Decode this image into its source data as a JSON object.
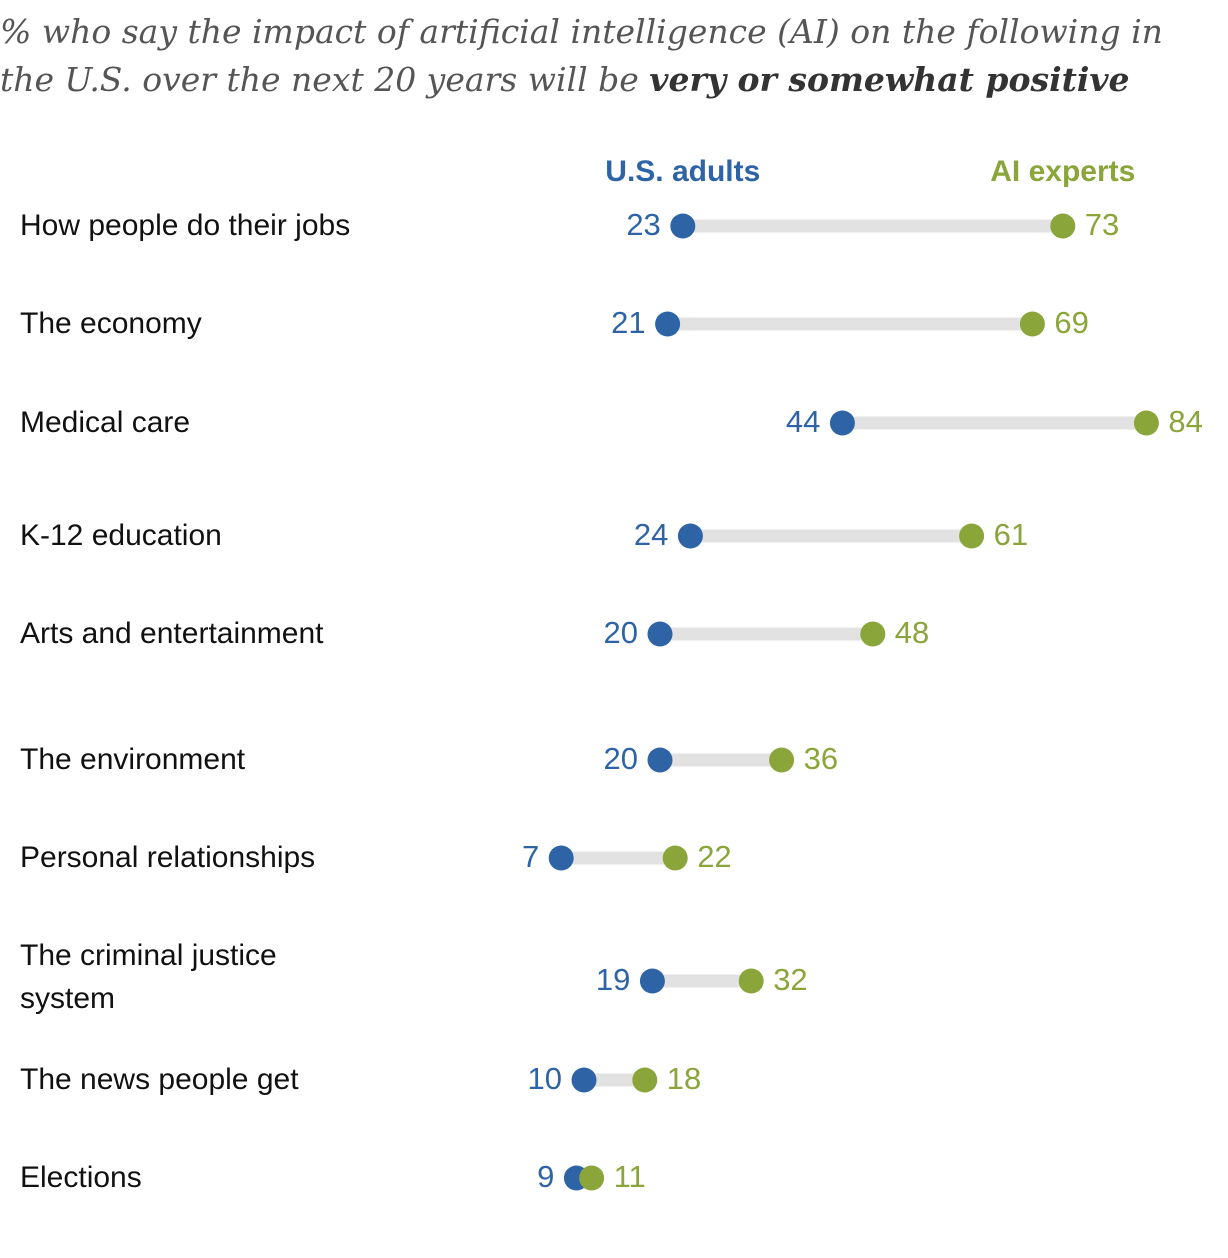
{
  "title": {
    "prefix": "% who say the impact of artificial intelligence (AI) on the following in the U.S. over the next 20 years will be ",
    "emphasis": "very or somewhat positive"
  },
  "colors": {
    "us_adults": "#2e64a6",
    "ai_experts": "#8aa53a",
    "connector": "#e2e2e2"
  },
  "chart_data": {
    "type": "dot",
    "title": "% who say the impact of artificial intelligence (AI) on the following in the U.S. over the next 20 years will be very or somewhat positive",
    "categories": [
      "How people do their jobs",
      "The economy",
      "Medical care",
      "K-12 education",
      "Arts and entertainment",
      "The environment",
      "Personal relationships",
      "The criminal justice system",
      "The news people get",
      "Elections"
    ],
    "series": [
      {
        "name": "U.S. adults",
        "values": [
          23,
          21,
          44,
          24,
          20,
          20,
          7,
          19,
          10,
          9
        ]
      },
      {
        "name": "AI experts",
        "values": [
          73,
          69,
          84,
          61,
          48,
          36,
          22,
          32,
          18,
          11
        ]
      }
    ],
    "legend": "top"
  }
}
